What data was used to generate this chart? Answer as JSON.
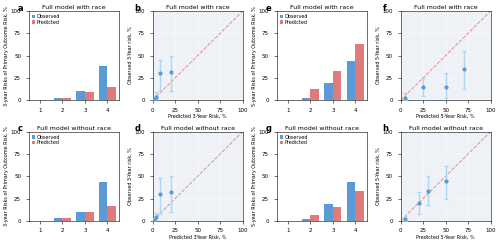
{
  "panels": {
    "a": {
      "type": "bar",
      "title": "Full model with race",
      "label": "a",
      "ylabel": "3-year Risks of Primary Outcome Risk, %",
      "categories": [
        1,
        2,
        3,
        4
      ],
      "observed": [
        0,
        3,
        10,
        38
      ],
      "predicted": [
        0,
        3,
        9,
        15
      ],
      "ylim": [
        0,
        100
      ],
      "yticks": [
        0,
        25,
        50,
        75,
        100
      ]
    },
    "b": {
      "type": "scatter",
      "title": "Full model with race",
      "label": "b",
      "xlabel": "Predicted 3-Year Risk, %",
      "ylabel": "Observed 3-Year risk, %",
      "points_x": [
        2,
        4,
        8,
        20
      ],
      "points_y": [
        1,
        4,
        30,
        32
      ],
      "error_low": [
        0,
        1,
        10,
        10
      ],
      "error_high": [
        3,
        9,
        45,
        50
      ],
      "xlim": [
        0,
        100
      ],
      "ylim": [
        0,
        100
      ],
      "xticks": [
        0,
        25,
        50,
        75,
        100
      ],
      "yticks": [
        0,
        25,
        50,
        75,
        100
      ]
    },
    "e": {
      "type": "bar",
      "title": "Full model with race",
      "label": "e",
      "ylabel": "5-year Risks of Primary Outcome Risk, %",
      "categories": [
        1,
        2,
        3,
        4
      ],
      "observed": [
        0,
        2,
        19,
        44
      ],
      "predicted": [
        0,
        12,
        33,
        63
      ],
      "ylim": [
        0,
        100
      ],
      "yticks": [
        0,
        25,
        50,
        75,
        100
      ]
    },
    "f": {
      "type": "scatter",
      "title": "Full model with race",
      "label": "f",
      "xlabel": "Predicted 5-Year Risk, %",
      "ylabel": "Observed 5-Year risk, %",
      "points_x": [
        5,
        25,
        50,
        70
      ],
      "points_y": [
        3,
        15,
        15,
        35
      ],
      "error_low": [
        0,
        5,
        3,
        12
      ],
      "error_high": [
        8,
        25,
        30,
        55
      ],
      "xlim": [
        0,
        100
      ],
      "ylim": [
        0,
        100
      ],
      "xticks": [
        0,
        25,
        50,
        75,
        100
      ],
      "yticks": [
        0,
        25,
        50,
        75,
        100
      ]
    },
    "c": {
      "type": "bar",
      "title": "Full model without race",
      "label": "c",
      "ylabel": "3-year Risks of Primary Outcome Risk, %",
      "categories": [
        1,
        2,
        3,
        4
      ],
      "observed": [
        0,
        3,
        10,
        43
      ],
      "predicted": [
        0,
        3,
        10,
        17
      ],
      "ylim": [
        0,
        100
      ],
      "yticks": [
        0,
        25,
        50,
        75,
        100
      ]
    },
    "d": {
      "type": "scatter",
      "title": "Full model without race",
      "label": "d",
      "xlabel": "Predicted 3Year Risk, %",
      "ylabel": "Observed 3-Year risk, %",
      "points_x": [
        2,
        4,
        8,
        20
      ],
      "points_y": [
        1,
        4,
        30,
        32
      ],
      "error_low": [
        0,
        1,
        8,
        10
      ],
      "error_high": [
        3,
        9,
        48,
        50
      ],
      "xlim": [
        0,
        100
      ],
      "ylim": [
        0,
        100
      ],
      "xticks": [
        0,
        25,
        50,
        75,
        100
      ],
      "yticks": [
        0,
        25,
        50,
        75,
        100
      ]
    },
    "g": {
      "type": "bar",
      "title": "Full model without race",
      "label": "g",
      "ylabel": "5-year Risks of Primary Outcome Risk, %",
      "categories": [
        1,
        2,
        3,
        4
      ],
      "observed": [
        0,
        2,
        19,
        44
      ],
      "predicted": [
        0,
        7,
        15,
        33
      ],
      "ylim": [
        0,
        100
      ],
      "yticks": [
        0,
        25,
        50,
        75,
        100
      ]
    },
    "h": {
      "type": "scatter",
      "title": "Full model without race",
      "label": "h",
      "xlabel": "Predicted 5-Year Risk, %",
      "ylabel": "Observed 5-Year risk, %",
      "points_x": [
        5,
        20,
        30,
        50
      ],
      "points_y": [
        2,
        20,
        33,
        45
      ],
      "error_low": [
        0,
        8,
        18,
        25
      ],
      "error_high": [
        5,
        32,
        50,
        62
      ],
      "xlim": [
        0,
        100
      ],
      "ylim": [
        0,
        100
      ],
      "xticks": [
        0,
        25,
        50,
        75,
        100
      ],
      "yticks": [
        0,
        25,
        50,
        75,
        100
      ]
    }
  },
  "layout": [
    "a",
    "b",
    "e",
    "f",
    "c",
    "d",
    "g",
    "h"
  ],
  "colors": {
    "observed": "#5B9BD5",
    "predicted": "#E07B7B",
    "scatter_point": "#5B9BD5",
    "scatter_err": "#AED6F1",
    "diag_line": "#E07B7B",
    "grid_bg": "#EEF2F7"
  }
}
